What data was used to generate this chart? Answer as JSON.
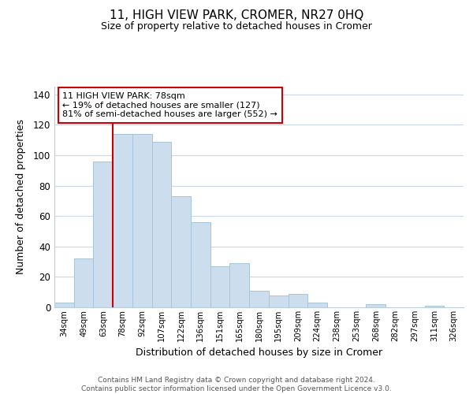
{
  "title": "11, HIGH VIEW PARK, CROMER, NR27 0HQ",
  "subtitle": "Size of property relative to detached houses in Cromer",
  "xlabel": "Distribution of detached houses by size in Cromer",
  "ylabel": "Number of detached properties",
  "bar_labels": [
    "34sqm",
    "49sqm",
    "63sqm",
    "78sqm",
    "92sqm",
    "107sqm",
    "122sqm",
    "136sqm",
    "151sqm",
    "165sqm",
    "180sqm",
    "195sqm",
    "209sqm",
    "224sqm",
    "238sqm",
    "253sqm",
    "268sqm",
    "282sqm",
    "297sqm",
    "311sqm",
    "326sqm"
  ],
  "bar_values": [
    3,
    32,
    96,
    114,
    114,
    109,
    73,
    56,
    27,
    29,
    11,
    8,
    9,
    3,
    0,
    0,
    2,
    0,
    0,
    1,
    0
  ],
  "bar_color": "#ccdded",
  "bar_edge_color": "#a8c4d8",
  "highlight_index": 3,
  "highlight_line_color": "#cc0000",
  "ylim": [
    0,
    145
  ],
  "yticks": [
    0,
    20,
    40,
    60,
    80,
    100,
    120,
    140
  ],
  "annotation_title": "11 HIGH VIEW PARK: 78sqm",
  "annotation_line1": "← 19% of detached houses are smaller (127)",
  "annotation_line2": "81% of semi-detached houses are larger (552) →",
  "annotation_box_color": "#ffffff",
  "annotation_box_edge_color": "#cc0000",
  "footer_line1": "Contains HM Land Registry data © Crown copyright and database right 2024.",
  "footer_line2": "Contains public sector information licensed under the Open Government Licence v3.0.",
  "background_color": "#ffffff",
  "grid_color": "#c8d8ea"
}
